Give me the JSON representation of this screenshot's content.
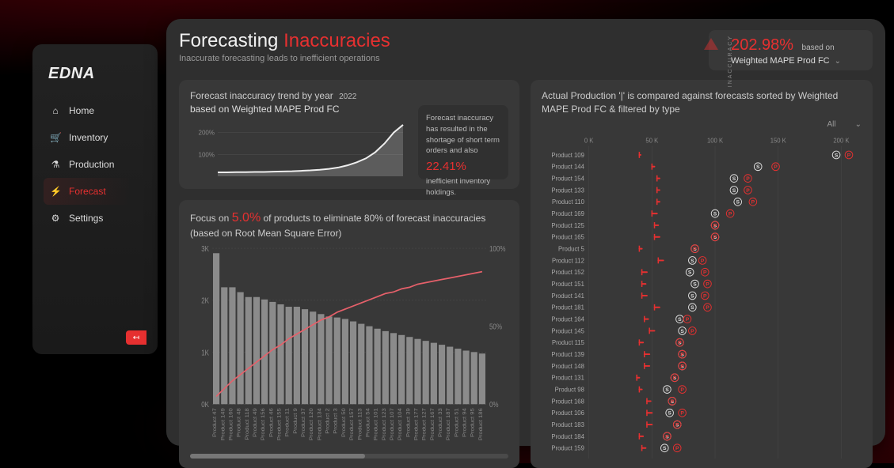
{
  "brand": "EDNA",
  "nav": [
    {
      "key": "home",
      "label": "Home",
      "glyph": "⌂"
    },
    {
      "key": "inventory",
      "label": "Inventory",
      "glyph": "🛒"
    },
    {
      "key": "production",
      "label": "Production",
      "glyph": "⚗"
    },
    {
      "key": "forecast",
      "label": "Forecast",
      "glyph": "⚡",
      "active": true
    },
    {
      "key": "settings",
      "label": "Settings",
      "glyph": "⚙"
    }
  ],
  "collapse_glyph": "↤",
  "header": {
    "title_a": "Forecasting ",
    "title_b": "Inaccuracies",
    "subtitle": "Inaccurate forecasting leads to inefficient operations",
    "kpi_value": "202.98%",
    "kpi_based": "based on",
    "kpi_metric": "Weighted MAPE Prod FC",
    "vertical_label": "INACCURACY"
  },
  "trend": {
    "title_a": "Forecast inaccuracy trend by year",
    "year": "2022",
    "title_b": "based on Weighted MAPE Prod FC",
    "y_ticks": [
      "100%",
      "200%"
    ],
    "series": [
      18,
      18,
      19,
      19,
      20,
      20,
      21,
      22,
      23,
      25,
      27,
      30,
      34,
      40,
      50,
      64,
      82,
      110,
      150,
      200,
      235
    ],
    "ylim": [
      0,
      260
    ],
    "line_color": "#eeeeee",
    "fill_color": "rgba(240,240,240,0.2)",
    "grid_color": "#505050",
    "note1": "Forecast inaccuracy has resulted in the shortage of short term orders and also",
    "note_big": "22.41%",
    "note2": "inefficient inventory holdings."
  },
  "pareto": {
    "title_a": "Focus on ",
    "pct": "5.0%",
    "title_b": " of products to eliminate 80% of forecast inaccuracies (based on Root Mean Square Error)",
    "y_ticks": [
      "0K",
      "1K",
      "2K",
      "3K"
    ],
    "y_max": 3.2,
    "pct_ticks": [
      "0%",
      "50%",
      "100%"
    ],
    "bar_color": "#8b8b8b",
    "line_color": "#e6606a",
    "grid_color": "#4a4a4a",
    "bars": [
      3.1,
      2.4,
      2.4,
      2.3,
      2.2,
      2.2,
      2.15,
      2.1,
      2.05,
      2.0,
      2.0,
      1.95,
      1.9,
      1.85,
      1.8,
      1.78,
      1.75,
      1.7,
      1.65,
      1.6,
      1.55,
      1.5,
      1.46,
      1.42,
      1.38,
      1.34,
      1.3,
      1.26,
      1.22,
      1.18,
      1.14,
      1.1,
      1.07,
      1.04
    ],
    "cum": [
      0.05,
      0.1,
      0.15,
      0.19,
      0.23,
      0.27,
      0.31,
      0.35,
      0.38,
      0.42,
      0.45,
      0.48,
      0.51,
      0.54,
      0.56,
      0.59,
      0.61,
      0.63,
      0.65,
      0.67,
      0.69,
      0.71,
      0.72,
      0.74,
      0.75,
      0.77,
      0.78,
      0.79,
      0.8,
      0.81,
      0.82,
      0.83,
      0.84,
      0.85
    ],
    "x_labels": [
      "Product 47",
      "Product 149",
      "Product 160",
      "Product 48",
      "Product 118",
      "Product 49",
      "Product 156",
      "Product 46",
      "Product 155",
      "Product 11",
      "Product 9",
      "Product 37",
      "Product 120",
      "Product 134",
      "Product 2",
      "Product 3",
      "Product 50",
      "Product 157",
      "Product 113",
      "Product 54",
      "Product 101",
      "Product 123",
      "Product 107",
      "Product 104",
      "Product 39",
      "Product 177",
      "Product 127",
      "Product 167",
      "Product 33",
      "Product 187",
      "Product 51",
      "Product 94",
      "Product 95",
      "Product 186"
    ]
  },
  "compare": {
    "title": "Actual Production '|' is compared against forecasts sorted by Weighted MAPE Prod FC & filtered by type",
    "filter_label": "All",
    "x_ticks": [
      0,
      50,
      100,
      150,
      200
    ],
    "x_tick_labels": [
      "0 K",
      "50 K",
      "100 K",
      "150 K",
      "200 K"
    ],
    "x_max": 210,
    "actual_color": "#e63030",
    "s_color": "#dddddd",
    "p_color": "#e63030",
    "rows": [
      {
        "label": "Product 109",
        "actual": 40,
        "hi": 41,
        "s": 196,
        "p": 206
      },
      {
        "label": "Product 144",
        "actual": 50,
        "hi": 52,
        "s": 134,
        "p": 148
      },
      {
        "label": "Product 154",
        "actual": 54,
        "hi": 56,
        "s": 115,
        "p": 126
      },
      {
        "label": "Product 133",
        "actual": 54,
        "hi": 56,
        "s": 115,
        "p": 126
      },
      {
        "label": "Product 110",
        "actual": 54,
        "hi": 56,
        "s": 118,
        "p": 130
      },
      {
        "label": "Product 169",
        "actual": 50,
        "hi": 54,
        "s": 100,
        "p": 112
      },
      {
        "label": "Product 125",
        "actual": 52,
        "hi": 55,
        "s": 100,
        "p": 100
      },
      {
        "label": "Product 165",
        "actual": 52,
        "hi": 56,
        "s": 100,
        "p": 100
      },
      {
        "label": "Product 5",
        "actual": 40,
        "hi": 42,
        "s": 84,
        "p": 84
      },
      {
        "label": "Product 112",
        "actual": 55,
        "hi": 59,
        "s": 82,
        "p": 90
      },
      {
        "label": "Product 152",
        "actual": 42,
        "hi": 46,
        "s": 80,
        "p": 92
      },
      {
        "label": "Product 151",
        "actual": 42,
        "hi": 45,
        "s": 84,
        "p": 94
      },
      {
        "label": "Product 141",
        "actual": 42,
        "hi": 46,
        "s": 82,
        "p": 92
      },
      {
        "label": "Product 181",
        "actual": 52,
        "hi": 56,
        "s": 82,
        "p": 94
      },
      {
        "label": "Product 164",
        "actual": 44,
        "hi": 47,
        "s": 72,
        "p": 78
      },
      {
        "label": "Product 145",
        "actual": 48,
        "hi": 52,
        "s": 74,
        "p": 82
      },
      {
        "label": "Product 115",
        "actual": 40,
        "hi": 43,
        "s": 72,
        "p": 72
      },
      {
        "label": "Product 139",
        "actual": 44,
        "hi": 48,
        "s": 74,
        "p": 74
      },
      {
        "label": "Product 148",
        "actual": 44,
        "hi": 48,
        "s": 74,
        "p": 74
      },
      {
        "label": "Product 131",
        "actual": 38,
        "hi": 40,
        "s": 68,
        "p": 68
      },
      {
        "label": "Product 98",
        "actual": 40,
        "hi": 42,
        "s": 62,
        "p": 74
      },
      {
        "label": "Product 168",
        "actual": 46,
        "hi": 49,
        "s": 66,
        "p": 66
      },
      {
        "label": "Product 106",
        "actual": 46,
        "hi": 50,
        "s": 64,
        "p": 74
      },
      {
        "label": "Product 183",
        "actual": 46,
        "hi": 50,
        "s": 70,
        "p": 70
      },
      {
        "label": "Product 184",
        "actual": 40,
        "hi": 43,
        "s": 62,
        "p": 62
      },
      {
        "label": "Product 159",
        "actual": 42,
        "hi": 45,
        "s": 60,
        "p": 70
      }
    ]
  },
  "colors": {
    "bg": "#2f2f2f",
    "card": "#383838",
    "accent": "#e63030",
    "text": "#cccccc",
    "muted": "#888888"
  }
}
